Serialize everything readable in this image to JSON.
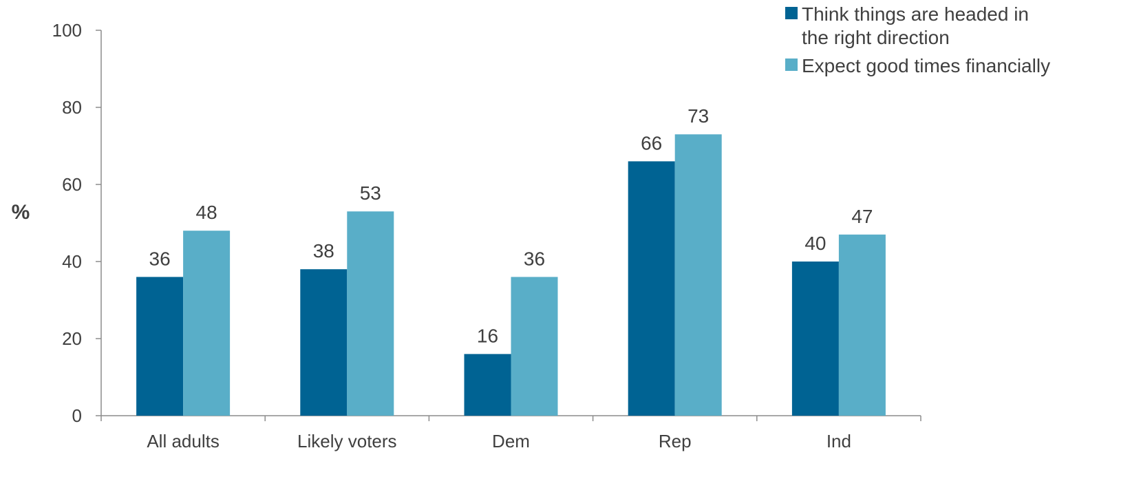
{
  "chart_data": {
    "type": "bar",
    "categories": [
      "All adults",
      "Likely voters",
      "Dem",
      "Rep",
      "Ind"
    ],
    "series": [
      {
        "name": "Think things are headed in the right direction",
        "legend_lines": [
          "Think things are headed in",
          "the right direction"
        ],
        "color": "#006393",
        "values": [
          36,
          38,
          16,
          66,
          40
        ]
      },
      {
        "name": "Expect good times financially",
        "legend_lines": [
          "Expect good times financially"
        ],
        "color": "#59aec8",
        "values": [
          48,
          53,
          36,
          73,
          47
        ]
      }
    ],
    "ylabel": "%",
    "ylim": [
      0,
      100
    ],
    "yticks": [
      0,
      20,
      40,
      60,
      80,
      100
    ],
    "grid": false,
    "legend_position": "top-right",
    "data_labels": true
  }
}
